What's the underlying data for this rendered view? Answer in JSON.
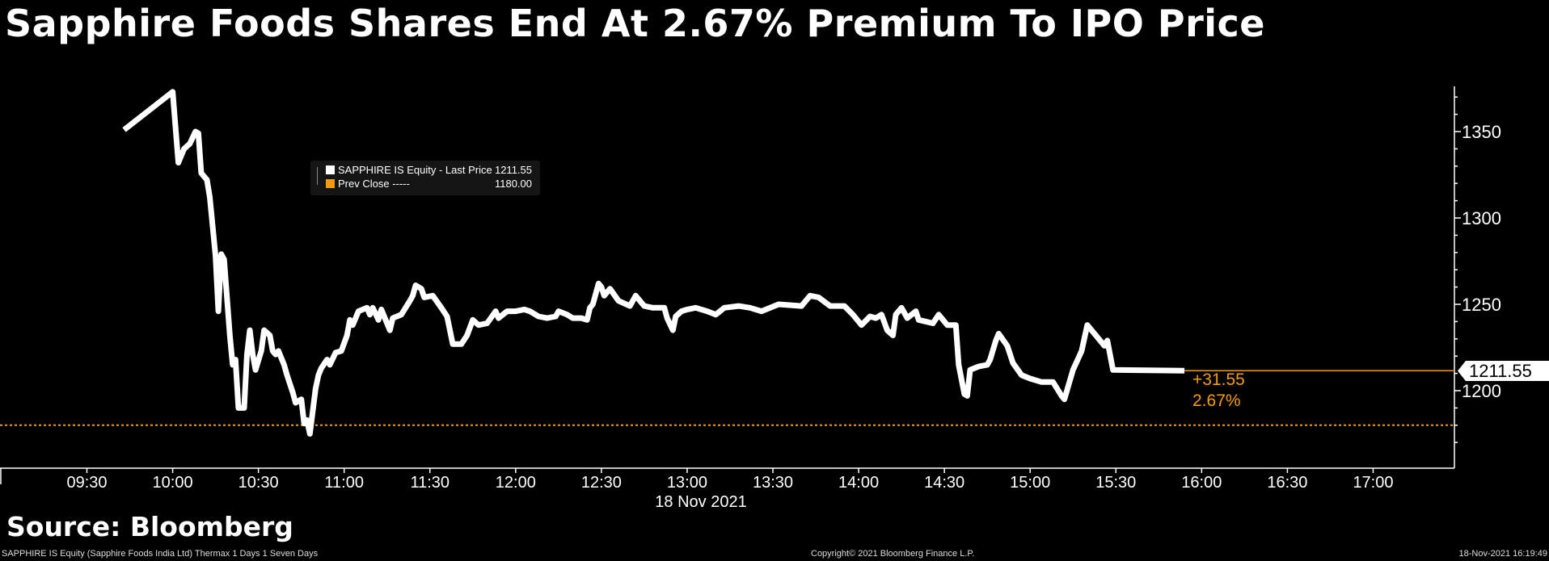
{
  "title": "Sapphire Foods Shares End At 2.67% Premium To IPO Price",
  "source": "Source: Bloomberg",
  "footer": {
    "left": "SAPPHIRE IS Equity (Sapphire Foods India Ltd) Thermax 1 Days 1 Seven Days",
    "center": "Copyright© 2021 Bloomberg Finance L.P.",
    "right": "18-Nov-2021 16:19:49"
  },
  "legend": {
    "items": [
      {
        "label": "SAPPHIRE IS Equity - Last Price",
        "value": "1211.55",
        "color": "#ffffff"
      },
      {
        "label": "Prev Close -----",
        "value": "1180.00",
        "color": "#f39c12"
      }
    ]
  },
  "last_price_tag": "1211.55",
  "change": {
    "abs": "+31.55",
    "pct": "2.67%"
  },
  "chart_data": {
    "type": "line",
    "title": "Sapphire Foods Shares End At 2.67% Premium To IPO Price",
    "date_label": "18 Nov 2021",
    "xlabel": "",
    "ylabel": "",
    "x_ticks": [
      "09:30",
      "10:00",
      "10:30",
      "11:00",
      "11:30",
      "12:00",
      "12:30",
      "13:00",
      "13:30",
      "14:00",
      "14:30",
      "15:00",
      "15:30",
      "16:00",
      "16:30",
      "17:00"
    ],
    "y_ticks": [
      1200,
      1250,
      1300,
      1350
    ],
    "ylim": [
      1165,
      1380
    ],
    "xlim": [
      "09:30",
      "17:00"
    ],
    "grid": false,
    "y_axis_side": "right",
    "legend_position": "top-left",
    "prev_close": 1180.0,
    "colors": {
      "series": "#ffffff",
      "prev_close": "#f39c12",
      "change_text": "#f39c12"
    },
    "series": [
      {
        "name": "SAPPHIRE IS Equity - Last Price",
        "x": [
          "09:43",
          "10:00",
          "10:02",
          "10:04",
          "10:06",
          "10:08",
          "10:09",
          "10:10",
          "10:12",
          "10:13",
          "10:15",
          "10:16",
          "10:17",
          "10:18",
          "10:20",
          "10:21",
          "10:22",
          "10:23",
          "10:25",
          "10:26",
          "10:27",
          "10:28",
          "10:29",
          "10:31",
          "10:32",
          "10:34",
          "10:35",
          "10:36",
          "10:37",
          "10:39",
          "10:40",
          "10:42",
          "10:43",
          "10:45",
          "10:46",
          "10:47",
          "10:48",
          "10:50",
          "10:51",
          "10:52",
          "10:54",
          "10:55",
          "10:57",
          "10:59",
          "11:01",
          "11:02",
          "11:03",
          "11:05",
          "11:08",
          "11:09",
          "11:10",
          "11:12",
          "11:13",
          "11:14",
          "11:16",
          "11:17",
          "11:20",
          "11:23",
          "11:24",
          "11:25",
          "11:27",
          "11:28",
          "11:31",
          "11:34",
          "11:36",
          "11:38",
          "11:41",
          "11:43",
          "11:45",
          "11:47",
          "11:50",
          "11:53",
          "11:54",
          "11:57",
          "12:00",
          "12:03",
          "12:05",
          "12:08",
          "12:11",
          "12:14",
          "12:15",
          "12:18",
          "12:20",
          "12:23",
          "12:25",
          "12:26",
          "12:27",
          "12:29",
          "12:30",
          "12:31",
          "12:33",
          "12:36",
          "12:40",
          "12:42",
          "12:45",
          "12:48",
          "12:52",
          "12:53",
          "12:55",
          "12:56",
          "12:58",
          "13:00",
          "13:03",
          "13:07",
          "13:10",
          "13:13",
          "13:18",
          "13:22",
          "13:26",
          "13:32",
          "13:40",
          "13:43",
          "13:46",
          "13:50",
          "13:55",
          "13:58",
          "14:01",
          "14:04",
          "14:06",
          "14:08",
          "14:10",
          "14:12",
          "14:13",
          "14:15",
          "14:17",
          "14:20",
          "14:21",
          "14:26",
          "14:28",
          "14:31",
          "14:34",
          "14:35",
          "14:37",
          "14:38",
          "14:39",
          "14:42",
          "14:45",
          "14:46",
          "14:48",
          "14:49",
          "14:52",
          "14:54",
          "14:57",
          "15:00",
          "15:04",
          "15:08",
          "15:11",
          "15:12",
          "15:15",
          "15:18",
          "15:20",
          "15:23",
          "15:26",
          "15:27",
          "15:29",
          "15:54"
        ],
        "y": [
          1351,
          1373,
          1332,
          1340,
          1343,
          1350,
          1349,
          1326,
          1322,
          1312,
          1278,
          1246,
          1279,
          1276,
          1232,
          1215,
          1218,
          1190,
          1190,
          1221,
          1235,
          1221,
          1212,
          1223,
          1235,
          1232,
          1223,
          1221,
          1223,
          1215,
          1209,
          1199,
          1193,
          1195,
          1181,
          1183,
          1175,
          1201,
          1209,
          1213,
          1218,
          1215,
          1222,
          1223,
          1232,
          1241,
          1238,
          1246,
          1248,
          1244,
          1248,
          1241,
          1247,
          1243,
          1235,
          1242,
          1244,
          1252,
          1255,
          1261,
          1259,
          1254,
          1255,
          1248,
          1243,
          1227,
          1227,
          1232,
          1241,
          1238,
          1239,
          1246,
          1242,
          1246,
          1246,
          1247,
          1246,
          1243,
          1242,
          1243,
          1246,
          1244,
          1242,
          1242,
          1241,
          1248,
          1250,
          1262,
          1260,
          1255,
          1259,
          1252,
          1249,
          1255,
          1249,
          1248,
          1248,
          1242,
          1235,
          1243,
          1246,
          1247,
          1248,
          1246,
          1244,
          1248,
          1249,
          1248,
          1246,
          1250,
          1249,
          1255,
          1254,
          1249,
          1249,
          1244,
          1238,
          1243,
          1242,
          1244,
          1235,
          1232,
          1244,
          1248,
          1242,
          1246,
          1241,
          1239,
          1244,
          1238,
          1238,
          1215,
          1198,
          1197,
          1212,
          1214,
          1215,
          1218,
          1229,
          1233,
          1226,
          1216,
          1209,
          1207,
          1205,
          1205,
          1197,
          1195,
          1212,
          1223,
          1238,
          1232,
          1226,
          1229,
          1212,
          1211.55
        ]
      }
    ]
  }
}
